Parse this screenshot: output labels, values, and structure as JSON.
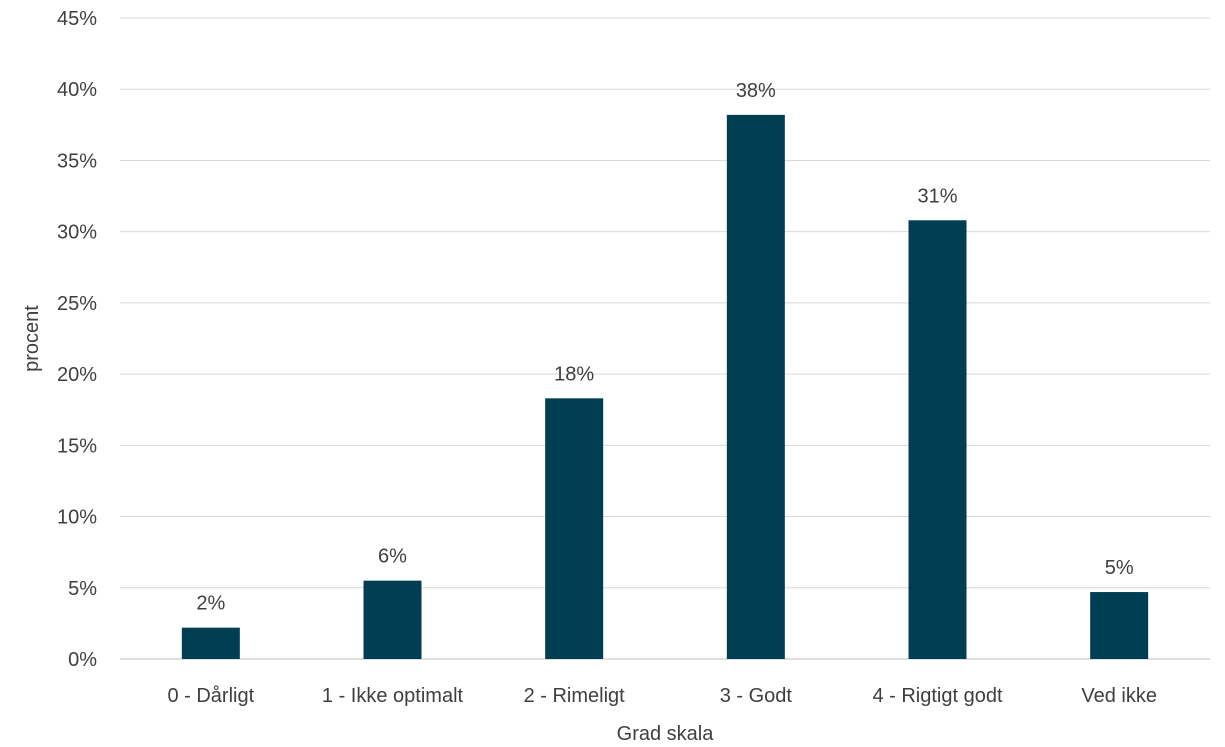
{
  "chart_data": {
    "type": "bar",
    "title": "",
    "xlabel": "Grad skala",
    "ylabel": "procent",
    "categories": [
      "0 - Dårligt",
      "1 - Ikke optimalt",
      "2 - Rimeligt",
      "3 - Godt",
      "4 - Rigtigt godt",
      "Ved ikke"
    ],
    "values": [
      2.2,
      5.5,
      18.3,
      38.2,
      30.8,
      4.7
    ],
    "data_labels": [
      "2%",
      "6%",
      "18%",
      "38%",
      "31%",
      "5%"
    ],
    "ylim": [
      0,
      45
    ],
    "yticks": [
      0,
      5,
      10,
      15,
      20,
      25,
      30,
      35,
      40,
      45
    ],
    "ytick_labels": [
      "0%",
      "5%",
      "10%",
      "15%",
      "20%",
      "25%",
      "30%",
      "35%",
      "40%",
      "45%"
    ],
    "bar_color": "#003f53",
    "grid": true,
    "legend": "none"
  }
}
